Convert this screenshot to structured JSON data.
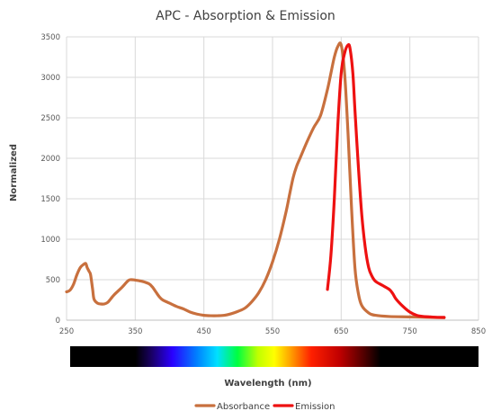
{
  "chart_data": {
    "type": "line",
    "title": "APC - Absorption & Emission",
    "xlabel": "Wavelength (nm)",
    "ylabel": "Normalized",
    "xlim": [
      250,
      850
    ],
    "ylim": [
      0,
      3500
    ],
    "x_ticks": [
      "250",
      "350",
      "450",
      "550",
      "650",
      "750",
      "850"
    ],
    "y_ticks": [
      "0",
      "500",
      "1000",
      "1500",
      "2000",
      "2500",
      "3000",
      "3500"
    ],
    "grid": true,
    "legend_position": "bottom",
    "spectrum_bar": true,
    "series": [
      {
        "name": "Absorbance",
        "color": "#c8703e",
        "points": [
          [
            250,
            350
          ],
          [
            255,
            370
          ],
          [
            260,
            440
          ],
          [
            265,
            560
          ],
          [
            270,
            650
          ],
          [
            275,
            690
          ],
          [
            278,
            700
          ],
          [
            280,
            650
          ],
          [
            283,
            600
          ],
          [
            285,
            560
          ],
          [
            288,
            380
          ],
          [
            290,
            260
          ],
          [
            295,
            210
          ],
          [
            300,
            200
          ],
          [
            305,
            200
          ],
          [
            310,
            220
          ],
          [
            315,
            270
          ],
          [
            320,
            320
          ],
          [
            330,
            400
          ],
          [
            340,
            490
          ],
          [
            345,
            500
          ],
          [
            350,
            495
          ],
          [
            360,
            480
          ],
          [
            370,
            450
          ],
          [
            375,
            410
          ],
          [
            380,
            350
          ],
          [
            385,
            290
          ],
          [
            390,
            250
          ],
          [
            400,
            210
          ],
          [
            410,
            170
          ],
          [
            420,
            140
          ],
          [
            430,
            100
          ],
          [
            440,
            75
          ],
          [
            450,
            60
          ],
          [
            460,
            55
          ],
          [
            470,
            55
          ],
          [
            480,
            60
          ],
          [
            490,
            80
          ],
          [
            500,
            110
          ],
          [
            510,
            150
          ],
          [
            520,
            230
          ],
          [
            530,
            340
          ],
          [
            540,
            500
          ],
          [
            550,
            720
          ],
          [
            560,
            1000
          ],
          [
            570,
            1350
          ],
          [
            575,
            1560
          ],
          [
            580,
            1760
          ],
          [
            585,
            1900
          ],
          [
            590,
            2000
          ],
          [
            600,
            2200
          ],
          [
            610,
            2380
          ],
          [
            620,
            2530
          ],
          [
            630,
            2850
          ],
          [
            635,
            3050
          ],
          [
            640,
            3250
          ],
          [
            645,
            3380
          ],
          [
            650,
            3400
          ],
          [
            655,
            3050
          ],
          [
            660,
            2300
          ],
          [
            665,
            1400
          ],
          [
            670,
            650
          ],
          [
            675,
            330
          ],
          [
            680,
            180
          ],
          [
            690,
            90
          ],
          [
            700,
            60
          ],
          [
            720,
            45
          ],
          [
            750,
            40
          ],
          [
            780,
            35
          ],
          [
            800,
            30
          ]
        ]
      },
      {
        "name": "Emission",
        "color": "#ee1111",
        "points": [
          [
            630,
            380
          ],
          [
            635,
            800
          ],
          [
            640,
            1500
          ],
          [
            645,
            2400
          ],
          [
            650,
            3050
          ],
          [
            655,
            3300
          ],
          [
            660,
            3400
          ],
          [
            663,
            3350
          ],
          [
            667,
            3050
          ],
          [
            670,
            2600
          ],
          [
            675,
            1900
          ],
          [
            680,
            1300
          ],
          [
            685,
            900
          ],
          [
            690,
            650
          ],
          [
            695,
            540
          ],
          [
            700,
            480
          ],
          [
            710,
            430
          ],
          [
            720,
            380
          ],
          [
            725,
            330
          ],
          [
            730,
            260
          ],
          [
            740,
            170
          ],
          [
            750,
            100
          ],
          [
            760,
            60
          ],
          [
            770,
            45
          ],
          [
            780,
            40
          ],
          [
            790,
            35
          ],
          [
            800,
            35
          ]
        ]
      }
    ]
  }
}
